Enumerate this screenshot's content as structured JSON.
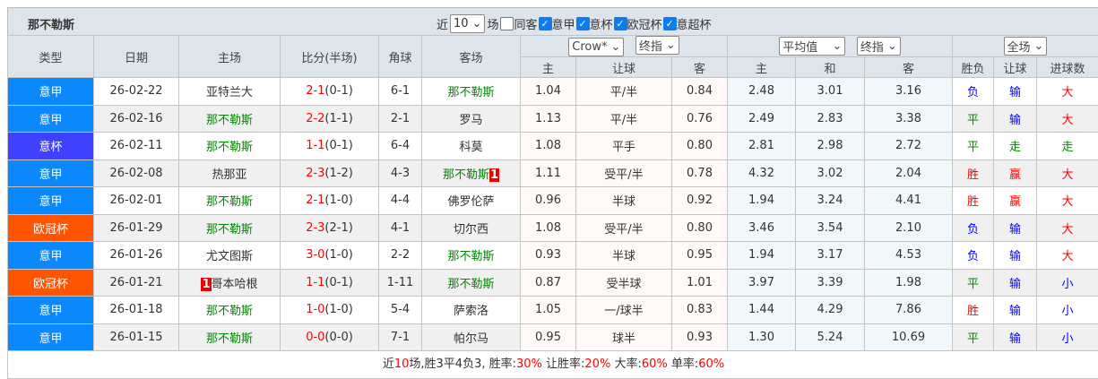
{
  "team": "那不勒斯",
  "filters": {
    "recent_label": "近",
    "count": "10",
    "count_suffix": "场",
    "checkboxes": [
      {
        "label": "同客",
        "checked": false
      },
      {
        "label": "意甲",
        "checked": true
      },
      {
        "label": "意杯",
        "checked": true
      },
      {
        "label": "欧冠杯",
        "checked": true
      },
      {
        "label": "意超杯",
        "checked": true
      }
    ]
  },
  "selects": {
    "company": "Crow*",
    "odds_type1": "终指",
    "avg": "平均值",
    "odds_type2": "终指",
    "scope": "全场"
  },
  "headers": {
    "type": "类型",
    "date": "日期",
    "home": "主场",
    "score": "比分(半场)",
    "corner": "角球",
    "away": "客场",
    "h1": "主",
    "hcap": "让球",
    "a1": "客",
    "h2": "主",
    "draw": "和",
    "a2": "客",
    "wl": "胜负",
    "hres": "让球",
    "goals": "进球数"
  },
  "colors": {
    "意甲": "#0a88fc",
    "意杯": "#4040ff",
    "欧冠杯": "#ff5500"
  },
  "rows": [
    {
      "type": "意甲",
      "date": "26-02-22",
      "home": "亚特兰大",
      "home_c": "",
      "home_tag": "",
      "away": "那不勒斯",
      "away_c": "green",
      "away_tag": "",
      "score": "2-1",
      "half": "(0-1)",
      "corner": "6-1",
      "o1": "1.04",
      "hc": "平/半",
      "o2": "0.84",
      "e1": "2.48",
      "e2": "3.01",
      "e3": "3.16",
      "wl": "负",
      "hr": "输",
      "gl": "大"
    },
    {
      "type": "意甲",
      "date": "26-02-16",
      "home": "那不勒斯",
      "home_c": "green",
      "home_tag": "",
      "away": "罗马",
      "away_c": "",
      "away_tag": "",
      "score": "2-2",
      "half": "(1-1)",
      "corner": "2-1",
      "o1": "1.13",
      "hc": "平/半",
      "o2": "0.76",
      "e1": "2.49",
      "e2": "2.83",
      "e3": "3.38",
      "wl": "平",
      "hr": "输",
      "gl": "大"
    },
    {
      "type": "意杯",
      "date": "26-02-11",
      "home": "那不勒斯",
      "home_c": "green",
      "home_tag": "",
      "away": "科莫",
      "away_c": "",
      "away_tag": "",
      "score": "1-1",
      "half": "(0-1)",
      "corner": "6-4",
      "o1": "1.08",
      "hc": "平手",
      "o2": "0.80",
      "e1": "2.81",
      "e2": "2.98",
      "e3": "2.72",
      "wl": "平",
      "hr": "走",
      "gl": "走"
    },
    {
      "type": "意甲",
      "date": "26-02-08",
      "home": "热那亚",
      "home_c": "",
      "home_tag": "",
      "away": "那不勒斯",
      "away_c": "green",
      "away_tag": "1",
      "score": "2-3",
      "half": "(1-2)",
      "corner": "4-3",
      "o1": "1.11",
      "hc": "受平/半",
      "o2": "0.78",
      "e1": "4.32",
      "e2": "3.02",
      "e3": "2.04",
      "wl": "胜",
      "hr": "赢",
      "gl": "大"
    },
    {
      "type": "意甲",
      "date": "26-02-01",
      "home": "那不勒斯",
      "home_c": "green",
      "home_tag": "",
      "away": "佛罗伦萨",
      "away_c": "",
      "away_tag": "",
      "score": "2-1",
      "half": "(1-0)",
      "corner": "4-4",
      "o1": "0.96",
      "hc": "半球",
      "o2": "0.92",
      "e1": "1.94",
      "e2": "3.24",
      "e3": "4.41",
      "wl": "胜",
      "hr": "赢",
      "gl": "大"
    },
    {
      "type": "欧冠杯",
      "date": "26-01-29",
      "home": "那不勒斯",
      "home_c": "green",
      "home_tag": "",
      "away": "切尔西",
      "away_c": "",
      "away_tag": "",
      "score": "2-3",
      "half": "(2-1)",
      "corner": "4-1",
      "o1": "1.08",
      "hc": "受平/半",
      "o2": "0.80",
      "e1": "3.46",
      "e2": "3.54",
      "e3": "2.10",
      "wl": "负",
      "hr": "输",
      "gl": "大"
    },
    {
      "type": "意甲",
      "date": "26-01-26",
      "home": "尤文图斯",
      "home_c": "",
      "home_tag": "",
      "away": "那不勒斯",
      "away_c": "green",
      "away_tag": "",
      "score": "3-0",
      "half": "(1-0)",
      "corner": "2-2",
      "o1": "0.93",
      "hc": "半球",
      "o2": "0.95",
      "e1": "1.94",
      "e2": "3.17",
      "e3": "4.53",
      "wl": "负",
      "hr": "输",
      "gl": "大"
    },
    {
      "type": "欧冠杯",
      "date": "26-01-21",
      "home": "哥本哈根",
      "home_c": "",
      "home_tag": "1",
      "away": "那不勒斯",
      "away_c": "green",
      "away_tag": "",
      "score": "1-1",
      "half": "(0-1)",
      "corner": "1-11",
      "o1": "0.87",
      "hc": "受半球",
      "o2": "1.01",
      "e1": "3.97",
      "e2": "3.39",
      "e3": "1.98",
      "wl": "平",
      "hr": "输",
      "gl": "小"
    },
    {
      "type": "意甲",
      "date": "26-01-18",
      "home": "那不勒斯",
      "home_c": "green",
      "home_tag": "",
      "away": "萨索洛",
      "away_c": "",
      "away_tag": "",
      "score": "1-0",
      "half": "(1-0)",
      "corner": "5-4",
      "o1": "1.05",
      "hc": "一/球半",
      "o2": "0.83",
      "e1": "1.44",
      "e2": "4.29",
      "e3": "7.86",
      "wl": "胜",
      "hr": "输",
      "gl": "小"
    },
    {
      "type": "意甲",
      "date": "26-01-15",
      "home": "那不勒斯",
      "home_c": "green",
      "home_tag": "",
      "away": "帕尔马",
      "away_c": "",
      "away_tag": "",
      "score": "0-0",
      "half": "(0-0)",
      "corner": "7-1",
      "o1": "0.95",
      "hc": "球半",
      "o2": "0.93",
      "e1": "1.30",
      "e2": "5.24",
      "e3": "10.69",
      "wl": "平",
      "hr": "输",
      "gl": "小"
    }
  ],
  "summary": {
    "p1": "近",
    "n": "10",
    "p2": "场,胜3平4负3, 胜率:",
    "win": "30%",
    "p3": " 让胜率:",
    "hwin": "20%",
    "p4": " 大率:",
    "big": "60%",
    "p5": " 单率:",
    "odd": "60%"
  }
}
